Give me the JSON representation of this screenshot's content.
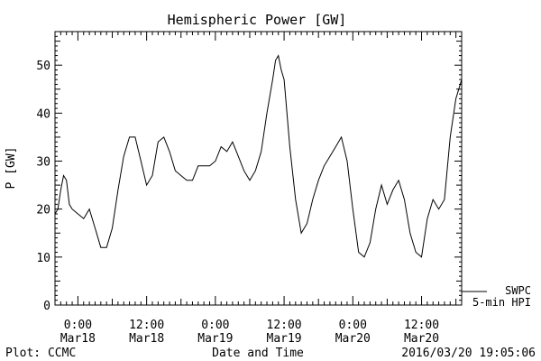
{
  "chart_data": {
    "type": "line",
    "title": "Hemispheric Power [GW]",
    "ylabel": "P [GW]",
    "xlabel": "Date and Time",
    "ylim": [
      0,
      57
    ],
    "xlim": [
      "2016-03-17T20:00",
      "2016-03-20T19:00"
    ],
    "y_ticks": [
      0,
      10,
      20,
      30,
      40,
      50
    ],
    "x_ticks": [
      {
        "time": "2016-03-18T00:00",
        "label_top": "0:00",
        "label_bottom": "Mar18"
      },
      {
        "time": "2016-03-18T12:00",
        "label_top": "12:00",
        "label_bottom": "Mar18"
      },
      {
        "time": "2016-03-19T00:00",
        "label_top": "0:00",
        "label_bottom": "Mar19"
      },
      {
        "time": "2016-03-19T12:00",
        "label_top": "12:00",
        "label_bottom": "Mar19"
      },
      {
        "time": "2016-03-20T00:00",
        "label_top": "0:00",
        "label_bottom": "Mar20"
      },
      {
        "time": "2016-03-20T12:00",
        "label_top": "12:00",
        "label_bottom": "Mar20"
      }
    ],
    "grid": false,
    "series": [
      {
        "name": "5-min HPI",
        "color": "#000000",
        "points": [
          [
            "2016-03-17T20:00",
            19
          ],
          [
            "2016-03-17T20:30",
            20
          ],
          [
            "2016-03-17T21:00",
            24
          ],
          [
            "2016-03-17T21:30",
            27
          ],
          [
            "2016-03-17T22:00",
            26
          ],
          [
            "2016-03-17T22:30",
            21
          ],
          [
            "2016-03-17T23:00",
            20
          ],
          [
            "2016-03-18T00:00",
            19
          ],
          [
            "2016-03-18T01:00",
            18
          ],
          [
            "2016-03-18T02:00",
            20
          ],
          [
            "2016-03-18T03:00",
            16
          ],
          [
            "2016-03-18T04:00",
            12
          ],
          [
            "2016-03-18T05:00",
            12
          ],
          [
            "2016-03-18T06:00",
            16
          ],
          [
            "2016-03-18T07:00",
            24
          ],
          [
            "2016-03-18T08:00",
            31
          ],
          [
            "2016-03-18T09:00",
            35
          ],
          [
            "2016-03-18T10:00",
            35
          ],
          [
            "2016-03-18T11:00",
            30
          ],
          [
            "2016-03-18T12:00",
            25
          ],
          [
            "2016-03-18T13:00",
            27
          ],
          [
            "2016-03-18T14:00",
            34
          ],
          [
            "2016-03-18T15:00",
            35
          ],
          [
            "2016-03-18T16:00",
            32
          ],
          [
            "2016-03-18T17:00",
            28
          ],
          [
            "2016-03-18T18:00",
            27
          ],
          [
            "2016-03-18T19:00",
            26
          ],
          [
            "2016-03-18T20:00",
            26
          ],
          [
            "2016-03-18T21:00",
            29
          ],
          [
            "2016-03-18T22:00",
            29
          ],
          [
            "2016-03-18T23:00",
            29
          ],
          [
            "2016-03-19T00:00",
            30
          ],
          [
            "2016-03-19T01:00",
            33
          ],
          [
            "2016-03-19T02:00",
            32
          ],
          [
            "2016-03-19T03:00",
            34
          ],
          [
            "2016-03-19T04:00",
            31
          ],
          [
            "2016-03-19T05:00",
            28
          ],
          [
            "2016-03-19T06:00",
            26
          ],
          [
            "2016-03-19T07:00",
            28
          ],
          [
            "2016-03-19T08:00",
            32
          ],
          [
            "2016-03-19T09:00",
            40
          ],
          [
            "2016-03-19T10:00",
            47
          ],
          [
            "2016-03-19T10:30",
            51
          ],
          [
            "2016-03-19T11:00",
            52
          ],
          [
            "2016-03-19T11:30",
            49
          ],
          [
            "2016-03-19T12:00",
            47
          ],
          [
            "2016-03-19T13:00",
            33
          ],
          [
            "2016-03-19T14:00",
            22
          ],
          [
            "2016-03-19T15:00",
            15
          ],
          [
            "2016-03-19T16:00",
            17
          ],
          [
            "2016-03-19T17:00",
            22
          ],
          [
            "2016-03-19T18:00",
            26
          ],
          [
            "2016-03-19T19:00",
            29
          ],
          [
            "2016-03-19T20:00",
            31
          ],
          [
            "2016-03-19T21:00",
            33
          ],
          [
            "2016-03-19T22:00",
            35
          ],
          [
            "2016-03-19T23:00",
            30
          ],
          [
            "2016-03-20T00:00",
            20
          ],
          [
            "2016-03-20T01:00",
            11
          ],
          [
            "2016-03-20T02:00",
            10
          ],
          [
            "2016-03-20T03:00",
            13
          ],
          [
            "2016-03-20T04:00",
            20
          ],
          [
            "2016-03-20T05:00",
            25
          ],
          [
            "2016-03-20T06:00",
            21
          ],
          [
            "2016-03-20T07:00",
            24
          ],
          [
            "2016-03-20T08:00",
            26
          ],
          [
            "2016-03-20T09:00",
            22
          ],
          [
            "2016-03-20T10:00",
            15
          ],
          [
            "2016-03-20T11:00",
            11
          ],
          [
            "2016-03-20T12:00",
            10
          ],
          [
            "2016-03-20T13:00",
            18
          ],
          [
            "2016-03-20T14:00",
            22
          ],
          [
            "2016-03-20T15:00",
            20
          ],
          [
            "2016-03-20T16:00",
            22
          ],
          [
            "2016-03-20T17:00",
            35
          ],
          [
            "2016-03-20T18:00",
            43
          ],
          [
            "2016-03-20T19:00",
            47
          ]
        ]
      }
    ]
  },
  "legend": {
    "line1": "SWPC",
    "line2": "5-min HPI"
  },
  "footer": {
    "credit": "Plot: CCMC",
    "timestamp": "2016/03/20 19:05:06"
  }
}
